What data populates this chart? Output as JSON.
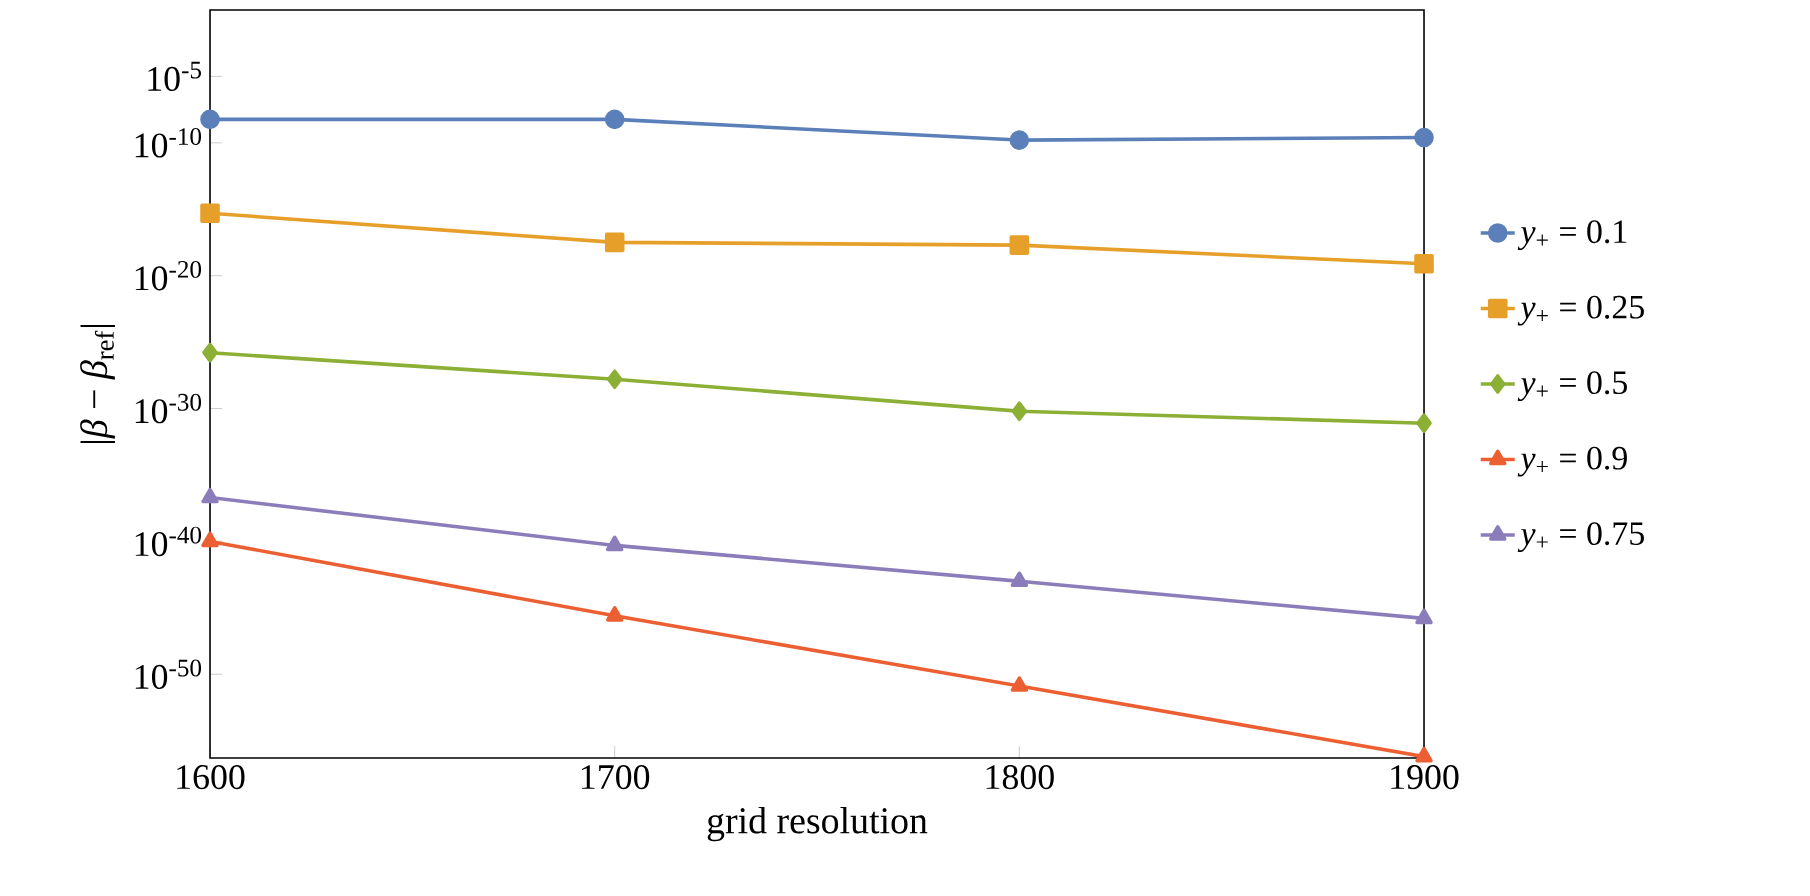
{
  "chart_data": {
    "type": "line",
    "xlabel": "grid resolution",
    "ylabel": "|*β* − *β*$_{ref}$|",
    "x": [
      1600,
      1700,
      1800,
      1900
    ],
    "series": [
      {
        "name": "*y*$_{+}$ = 0.1",
        "color": "#5b7fb8",
        "marker": "circle",
        "values": [
          5.8e-09,
          5.8e-09,
          1.6e-10,
          2.5e-10
        ]
      },
      {
        "name": "*y*$_{+}$ = 0.25",
        "color": "#e6a02a",
        "marker": "square",
        "values": [
          5e-16,
          3.2e-18,
          2e-18,
          7.9e-20
        ]
      },
      {
        "name": "*y*$_{+}$ = 0.5",
        "color": "#8cb035",
        "marker": "diamond",
        "values": [
          1.6e-26,
          1.6e-28,
          6.3e-31,
          7.9e-32
        ]
      },
      {
        "name": "*y*$_{+}$ = 0.9",
        "color": "#ec5f32",
        "marker": "triangle",
        "values": [
          1e-40,
          2.5e-46,
          1.3e-51,
          6.3e-57
        ]
      },
      {
        "name": "*y*$_{+}$ = 0.75",
        "color": "#8a7dba",
        "marker": "triangle-down",
        "values": [
          2e-37,
          5e-41,
          1e-43,
          1.6e-46
        ]
      }
    ],
    "log": "y",
    "xlim": [
      1600,
      1900
    ],
    "ylim": [
      5e-57,
      1
    ],
    "xticks": [
      1600,
      1700,
      1800,
      1900
    ],
    "yticks": [
      {
        "value": 1e-05,
        "label": "10$^{-5}$"
      },
      {
        "value": 1e-10,
        "label": "10$^{-10}$"
      },
      {
        "value": 1e-20,
        "label": "10$^{-20}$"
      },
      {
        "value": 1e-30,
        "label": "10$^{-30}$"
      },
      {
        "value": 1e-40,
        "label": "10$^{-40}$"
      },
      {
        "value": 1e-50,
        "label": "10$^{-50}$"
      }
    ],
    "grid": false,
    "legend": "right",
    "line_style": "solid"
  }
}
